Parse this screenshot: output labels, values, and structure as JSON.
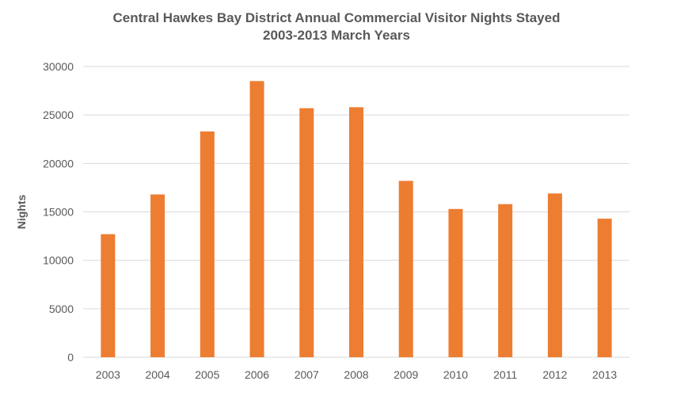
{
  "chart_data": {
    "type": "bar",
    "title": "Central Hawkes Bay District Annual Commercial Visitor Nights Stayed",
    "subtitle": "2003-2013 March Years",
    "xlabel": "",
    "ylabel": "Nights",
    "categories": [
      "2003",
      "2004",
      "2005",
      "2006",
      "2007",
      "2008",
      "2009",
      "2010",
      "2011",
      "2012",
      "2013"
    ],
    "values": [
      12700,
      16800,
      23300,
      28500,
      25700,
      25800,
      18200,
      15300,
      15800,
      16900,
      14300
    ],
    "ylim": [
      0,
      30000
    ],
    "yticks": [
      0,
      5000,
      10000,
      15000,
      20000,
      25000,
      30000
    ],
    "grid": true,
    "legend": "none",
    "bar_color": "#ED7D31",
    "grid_color": "#D9D9D9"
  }
}
